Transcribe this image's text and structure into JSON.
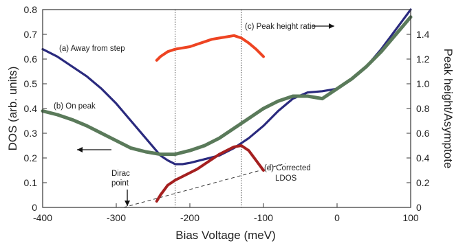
{
  "chart_data": {
    "type": "line",
    "xlabel": "Bias Voltage (meV)",
    "ylabel": "DOS (arb. units)",
    "ylabel_right": "Peak height/Asymptote",
    "xlim": [
      -400,
      100
    ],
    "ylim": [
      0,
      0.8
    ],
    "ylim_right": [
      0,
      1.6
    ],
    "x_ticks": [
      "-400",
      "-300",
      "-200",
      "-100",
      "0",
      "100"
    ],
    "y_ticks": [
      "0",
      "0.1",
      "0.2",
      "0.3",
      "0.4",
      "0.5",
      "0.6",
      "0.7",
      "0.8"
    ],
    "y_right_ticks": [
      "0",
      "0.2",
      "0.4",
      "0.6",
      "0.8",
      "1.0",
      "1.2",
      "1.4"
    ],
    "annotations": {
      "away": "(a) Away from step",
      "onpeak": "(b) On peak",
      "ratio": "(c) Peak height ratio",
      "corrected_1": "(d) Corrected",
      "corrected_2": "LDOS",
      "dirac_1": "Dirac",
      "dirac_2": "point"
    },
    "vlines": [
      -220,
      -130
    ],
    "dirac_point_x": -285,
    "colors": {
      "away": "#2a2a7e",
      "onpeak": "#5a7a5a",
      "ratio": "#ee4422",
      "corrected": "#a52020"
    },
    "series": [
      {
        "key": "away",
        "axis": "left",
        "x": [
          -400,
          -380,
          -360,
          -340,
          -320,
          -300,
          -280,
          -260,
          -240,
          -230,
          -220,
          -210,
          -200,
          -180,
          -160,
          -140,
          -120,
          -100,
          -80,
          -60,
          -40,
          -20,
          0,
          20,
          40,
          60,
          80,
          100
        ],
        "y": [
          0.64,
          0.61,
          0.57,
          0.53,
          0.48,
          0.42,
          0.35,
          0.28,
          0.21,
          0.19,
          0.175,
          0.175,
          0.18,
          0.195,
          0.21,
          0.24,
          0.28,
          0.33,
          0.39,
          0.44,
          0.465,
          0.47,
          0.48,
          0.52,
          0.57,
          0.64,
          0.72,
          0.8
        ]
      },
      {
        "key": "onpeak",
        "axis": "left",
        "x": [
          -400,
          -380,
          -360,
          -340,
          -320,
          -300,
          -280,
          -260,
          -240,
          -220,
          -200,
          -180,
          -160,
          -140,
          -120,
          -100,
          -80,
          -60,
          -40,
          -20,
          0,
          20,
          40,
          60,
          80,
          100
        ],
        "y": [
          0.39,
          0.375,
          0.355,
          0.33,
          0.3,
          0.27,
          0.24,
          0.225,
          0.215,
          0.215,
          0.23,
          0.25,
          0.28,
          0.32,
          0.36,
          0.4,
          0.43,
          0.45,
          0.45,
          0.44,
          0.48,
          0.52,
          0.57,
          0.63,
          0.7,
          0.77
        ]
      },
      {
        "key": "ratio",
        "axis": "right",
        "x": [
          -245,
          -240,
          -230,
          -220,
          -210,
          -200,
          -190,
          -180,
          -170,
          -160,
          -150,
          -140,
          -130,
          -120,
          -110,
          -100
        ],
        "y": [
          1.19,
          1.22,
          1.26,
          1.28,
          1.29,
          1.3,
          1.32,
          1.34,
          1.36,
          1.37,
          1.38,
          1.39,
          1.37,
          1.33,
          1.28,
          1.22
        ]
      },
      {
        "key": "corrected",
        "axis": "right",
        "x": [
          -245,
          -240,
          -230,
          -220,
          -210,
          -200,
          -190,
          -180,
          -170,
          -160,
          -150,
          -140,
          -130,
          -120,
          -110,
          -100
        ],
        "y": [
          0.05,
          0.1,
          0.18,
          0.22,
          0.25,
          0.28,
          0.31,
          0.35,
          0.39,
          0.43,
          0.46,
          0.49,
          0.5,
          0.46,
          0.38,
          0.3
        ]
      }
    ],
    "dashed_line": {
      "x": [
        -290,
        -70
      ],
      "y": [
        0.0,
        0.355
      ]
    }
  }
}
